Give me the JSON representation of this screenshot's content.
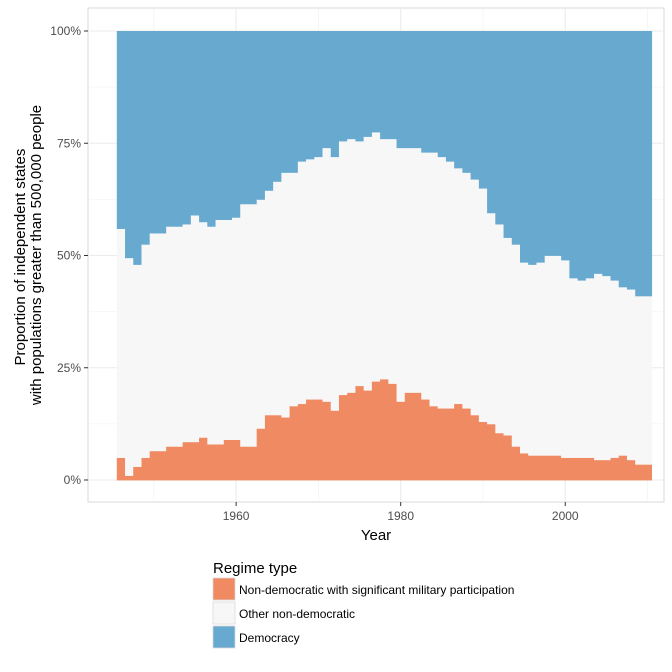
{
  "chart_data": {
    "type": "area",
    "subtype": "stacked-proportion-step",
    "xlabel": "Year",
    "ylabel_lines": [
      "Proportion of independent states",
      "with populations greater than 500,000 people"
    ],
    "xlim": [
      1942,
      2012
    ],
    "ylim": [
      0,
      1
    ],
    "x_ticks": [
      1960,
      1980,
      2000
    ],
    "x_tick_labels": [
      "1960",
      "1980",
      "2000"
    ],
    "y_ticks": [
      0,
      0.25,
      0.5,
      0.75,
      1
    ],
    "y_tick_labels": [
      "0%",
      "25%",
      "50%",
      "75%",
      "100%"
    ],
    "grid": true,
    "legend": {
      "title": "Regime type",
      "placement": "bottom",
      "entries": [
        {
          "label": "Non-democratic with significant military participation",
          "color": "#ef8a62"
        },
        {
          "label": "Other non-democratic",
          "color": "#f7f7f7"
        },
        {
          "label": "Democracy",
          "color": "#67a9cf"
        }
      ]
    },
    "colors": {
      "military": "#ef8a62",
      "other": "#f7f7f7",
      "democracy": "#67a9cf"
    },
    "years": [
      1946,
      1947,
      1948,
      1949,
      1950,
      1951,
      1952,
      1953,
      1954,
      1955,
      1956,
      1957,
      1958,
      1959,
      1960,
      1961,
      1962,
      1963,
      1964,
      1965,
      1966,
      1967,
      1968,
      1969,
      1970,
      1971,
      1972,
      1973,
      1974,
      1975,
      1976,
      1977,
      1978,
      1979,
      1980,
      1981,
      1982,
      1983,
      1984,
      1985,
      1986,
      1987,
      1988,
      1989,
      1990,
      1991,
      1992,
      1993,
      1994,
      1995,
      1996,
      1997,
      1998,
      1999,
      2000,
      2001,
      2002,
      2003,
      2004,
      2005,
      2006,
      2007,
      2008,
      2009,
      2010
    ],
    "series": [
      {
        "name": "Non-democratic with significant military participation",
        "values": [
          0.05,
          0.01,
          0.03,
          0.05,
          0.065,
          0.065,
          0.075,
          0.075,
          0.085,
          0.085,
          0.095,
          0.08,
          0.08,
          0.09,
          0.09,
          0.075,
          0.075,
          0.115,
          0.145,
          0.145,
          0.14,
          0.165,
          0.17,
          0.18,
          0.18,
          0.175,
          0.155,
          0.19,
          0.195,
          0.21,
          0.2,
          0.22,
          0.225,
          0.215,
          0.175,
          0.195,
          0.195,
          0.18,
          0.165,
          0.16,
          0.16,
          0.17,
          0.16,
          0.145,
          0.13,
          0.125,
          0.105,
          0.1,
          0.075,
          0.06,
          0.055,
          0.055,
          0.055,
          0.055,
          0.05,
          0.05,
          0.05,
          0.05,
          0.045,
          0.045,
          0.05,
          0.055,
          0.045,
          0.035,
          0.035
        ]
      },
      {
        "name": "Other non-democratic",
        "values": [
          0.51,
          0.485,
          0.45,
          0.475,
          0.485,
          0.485,
          0.49,
          0.49,
          0.485,
          0.505,
          0.48,
          0.485,
          0.5,
          0.49,
          0.495,
          0.54,
          0.54,
          0.51,
          0.5,
          0.52,
          0.545,
          0.52,
          0.54,
          0.535,
          0.54,
          0.565,
          0.565,
          0.565,
          0.565,
          0.545,
          0.565,
          0.555,
          0.535,
          0.545,
          0.565,
          0.545,
          0.545,
          0.55,
          0.565,
          0.56,
          0.55,
          0.525,
          0.525,
          0.525,
          0.52,
          0.47,
          0.465,
          0.44,
          0.45,
          0.425,
          0.425,
          0.43,
          0.445,
          0.445,
          0.44,
          0.4,
          0.395,
          0.4,
          0.415,
          0.41,
          0.395,
          0.375,
          0.38,
          0.375,
          0.375
        ]
      },
      {
        "name": "Democracy",
        "values": [
          0.44,
          0.505,
          0.52,
          0.475,
          0.45,
          0.45,
          0.435,
          0.435,
          0.43,
          0.41,
          0.425,
          0.435,
          0.42,
          0.42,
          0.415,
          0.385,
          0.385,
          0.375,
          0.355,
          0.335,
          0.315,
          0.315,
          0.29,
          0.285,
          0.28,
          0.26,
          0.28,
          0.245,
          0.24,
          0.245,
          0.235,
          0.225,
          0.24,
          0.24,
          0.26,
          0.26,
          0.26,
          0.27,
          0.27,
          0.28,
          0.29,
          0.305,
          0.315,
          0.33,
          0.35,
          0.405,
          0.43,
          0.46,
          0.475,
          0.515,
          0.52,
          0.515,
          0.5,
          0.5,
          0.51,
          0.55,
          0.555,
          0.55,
          0.54,
          0.545,
          0.555,
          0.57,
          0.575,
          0.59,
          0.59
        ]
      }
    ]
  }
}
